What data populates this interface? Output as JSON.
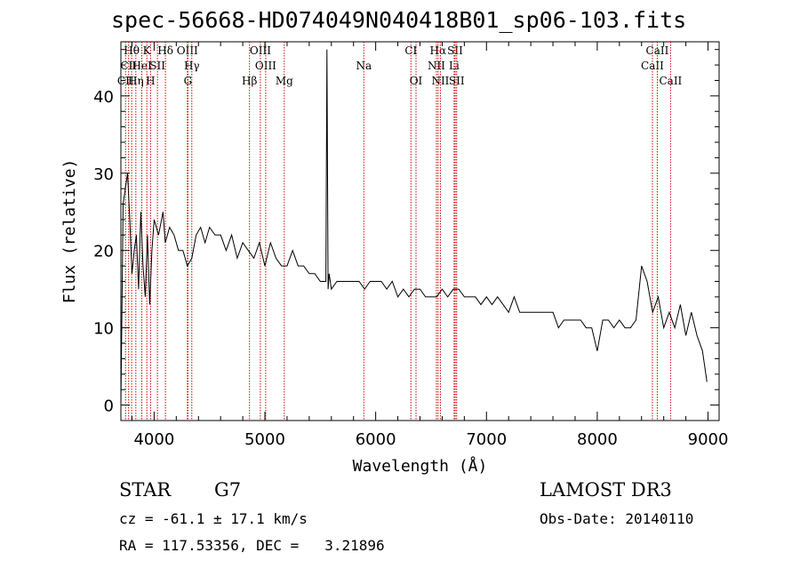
{
  "title": "spec-56668-HD074049N040418B01_sp06-103.fits",
  "info": {
    "object_class": "STAR",
    "subclass": "G7",
    "survey": "LAMOST DR3",
    "cz": "cz = -61.1 ± 17.1 km/s",
    "obs_date": "Obs-Date: 20140110",
    "radec": "RA = 117.53356, DEC =   3.21896"
  },
  "chart_data": {
    "type": "line",
    "title": "spec-56668-HD074049N040418B01_sp06-103.fits",
    "xlabel": "Wavelength (Å)",
    "ylabel": "Flux (relative)",
    "xlim": [
      3700,
      9100
    ],
    "ylim": [
      -2,
      47
    ],
    "x_ticks": [
      4000,
      5000,
      6000,
      7000,
      8000,
      9000
    ],
    "y_ticks": [
      0,
      10,
      20,
      30,
      40
    ],
    "grid": false,
    "line_color": "#000000",
    "marker_color": "#cc0000",
    "spectrum": {
      "x": [
        3700,
        3720,
        3740,
        3760,
        3780,
        3800,
        3820,
        3840,
        3860,
        3880,
        3900,
        3920,
        3940,
        3960,
        3980,
        4000,
        4040,
        4080,
        4100,
        4140,
        4180,
        4220,
        4260,
        4300,
        4340,
        4380,
        4420,
        4460,
        4500,
        4550,
        4600,
        4650,
        4700,
        4750,
        4800,
        4850,
        4900,
        4950,
        5000,
        5050,
        5100,
        5150,
        5200,
        5250,
        5300,
        5350,
        5400,
        5450,
        5500,
        5550,
        5560,
        5570,
        5580,
        5600,
        5650,
        5700,
        5750,
        5800,
        5850,
        5900,
        5950,
        6000,
        6050,
        6100,
        6150,
        6200,
        6250,
        6300,
        6350,
        6400,
        6450,
        6500,
        6550,
        6600,
        6650,
        6700,
        6750,
        6800,
        6850,
        6900,
        6950,
        7000,
        7050,
        7100,
        7150,
        7200,
        7250,
        7300,
        7350,
        7400,
        7450,
        7500,
        7550,
        7600,
        7650,
        7700,
        7750,
        7800,
        7850,
        7900,
        7950,
        8000,
        8050,
        8100,
        8150,
        8200,
        8250,
        8300,
        8350,
        8400,
        8450,
        8500,
        8550,
        8600,
        8650,
        8700,
        8750,
        8800,
        8850,
        8900,
        8950,
        8990
      ],
      "y": [
        0,
        26,
        28,
        30,
        24,
        17,
        20,
        22,
        15,
        25,
        18,
        14,
        22,
        13,
        20,
        24,
        22,
        25,
        21,
        23,
        22,
        20,
        20,
        18,
        19,
        22,
        23,
        21,
        23,
        22,
        22,
        20,
        22,
        19,
        21,
        20,
        19,
        21,
        18,
        21,
        19,
        18,
        18,
        20,
        18,
        18,
        17,
        17,
        16,
        16,
        46,
        15,
        17,
        15,
        16,
        16,
        16,
        16,
        16,
        15,
        16,
        16,
        16,
        15,
        16,
        14,
        15,
        14,
        15,
        15,
        14,
        14,
        14,
        15,
        14,
        15,
        15,
        14,
        14,
        14,
        13,
        14,
        13,
        14,
        13,
        12,
        14,
        12,
        12,
        12,
        12,
        12,
        12,
        12,
        10,
        11,
        11,
        11,
        11,
        10,
        10,
        7,
        11,
        11,
        10,
        11,
        10,
        10,
        11,
        18,
        16,
        12,
        14,
        10,
        12,
        10,
        13,
        9,
        12,
        9,
        7,
        3
      ]
    },
    "line_markers": [
      {
        "label": "Hθ",
        "wavelength": 3797,
        "row": 1
      },
      {
        "label": "CII",
        "wavelength": 3770,
        "row": 2
      },
      {
        "label": "CII",
        "wavelength": 3742,
        "row": 3
      },
      {
        "label": "Hη",
        "wavelength": 3835,
        "row": 3
      },
      {
        "label": "HeI",
        "wavelength": 3889,
        "row": 2
      },
      {
        "label": "K",
        "wavelength": 3934,
        "row": 1
      },
      {
        "label": "H",
        "wavelength": 3968,
        "row": 3
      },
      {
        "label": "SII",
        "wavelength": 4030,
        "row": 2
      },
      {
        "label": "Hδ",
        "wavelength": 4102,
        "row": 1
      },
      {
        "label": "OIII",
        "wavelength": 4300,
        "row": 1
      },
      {
        "label": "Hγ",
        "wavelength": 4340,
        "row": 2
      },
      {
        "label": "G",
        "wavelength": 4305,
        "row": 3
      },
      {
        "label": "Hβ",
        "wavelength": 4861,
        "row": 3
      },
      {
        "label": "OIII",
        "wavelength": 4959,
        "row": 1
      },
      {
        "label": "OIII",
        "wavelength": 5007,
        "row": 2
      },
      {
        "label": "Mg",
        "wavelength": 5175,
        "row": 3
      },
      {
        "label": "Na",
        "wavelength": 5893,
        "row": 2
      },
      {
        "label": "CI",
        "wavelength": 6318,
        "row": 1
      },
      {
        "label": "OI",
        "wavelength": 6364,
        "row": 3
      },
      {
        "label": "Hα",
        "wavelength": 6563,
        "row": 1
      },
      {
        "label": "NII",
        "wavelength": 6548,
        "row": 2
      },
      {
        "label": "NII",
        "wavelength": 6584,
        "row": 3
      },
      {
        "label": "SII",
        "wavelength": 6717,
        "row": 1
      },
      {
        "label": "Li",
        "wavelength": 6708,
        "row": 2
      },
      {
        "label": "SII",
        "wavelength": 6731,
        "row": 3
      },
      {
        "label": "CaII",
        "wavelength": 8498,
        "row": 2
      },
      {
        "label": "CaII",
        "wavelength": 8542,
        "row": 1
      },
      {
        "label": "CaII",
        "wavelength": 8662,
        "row": 3
      }
    ]
  }
}
